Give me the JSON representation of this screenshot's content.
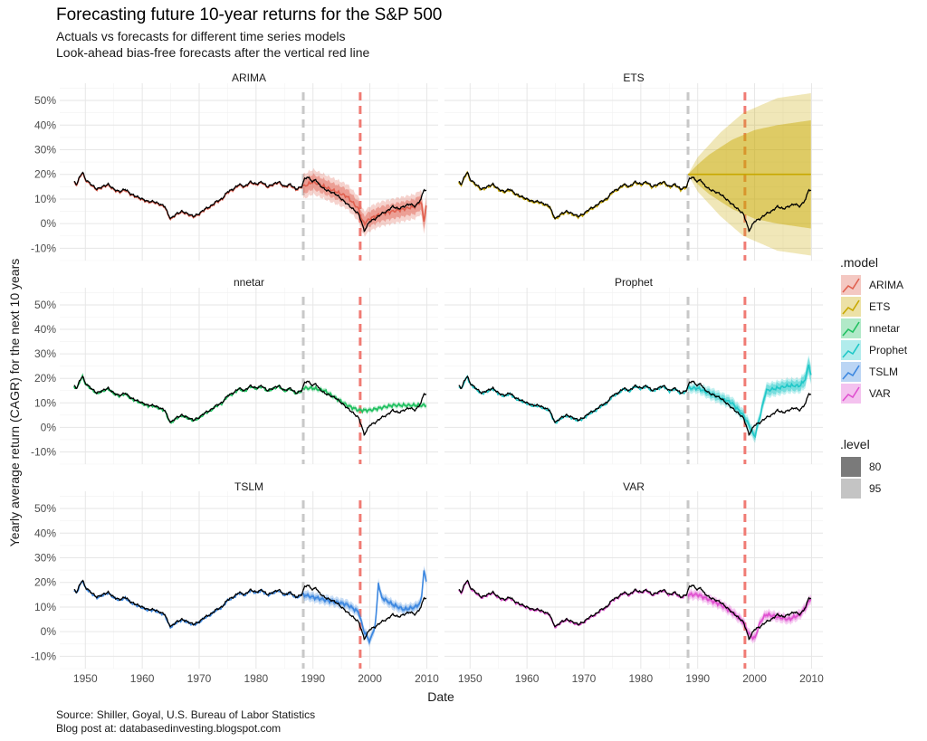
{
  "texts": {
    "title": "Forecasting future 10-year returns for the S&P 500",
    "subtitle_1": "Actuals vs forecasts for different time series models",
    "subtitle_2": "Look-ahead bias-free forecasts after the vertical red line",
    "caption_1": "Source: Shiller, Goyal, U.S. Bureau of Labor Statistics",
    "caption_2": "Blog post at: databasedinvesting.blogspot.com",
    "xlabel": "Date",
    "ylabel": "Yearly average return (CAGR) for the next 10 years"
  },
  "chart_data": {
    "type": "line",
    "title": "Forecasting future 10-year returns for the S&P 500",
    "xlabel": "Date",
    "ylabel": "Yearly average return (CAGR) for the next 10 years",
    "xlim": [
      1945.5,
      2012
    ],
    "ylim": [
      -15,
      57
    ],
    "x_ticks": [
      1950,
      1960,
      1970,
      1980,
      1990,
      2000,
      2010
    ],
    "x_tick_labels": [
      "1950",
      "1960",
      "1970",
      "1980",
      "1990",
      "2000",
      "2010"
    ],
    "y_ticks": [
      -10,
      0,
      10,
      20,
      30,
      40,
      50
    ],
    "y_tick_labels": [
      "-10%",
      "0%",
      "10%",
      "20%",
      "30%",
      "40%",
      "50%"
    ],
    "grid": true,
    "legend_position": "right",
    "training_end_line": {
      "x": 1988.3,
      "color": "#c8c8c8"
    },
    "forecast_start_line": {
      "x": 1998.3,
      "color": "#f07b74"
    },
    "legend": {
      "model_title": ".model",
      "level_title": ".level",
      "levels": [
        "80",
        "95"
      ]
    },
    "actual": {
      "name": "Actual",
      "color": "#000000",
      "x": [
        1948,
        1948.5,
        1949,
        1949.5,
        1950,
        1950.5,
        1951,
        1951.5,
        1952,
        1953,
        1954,
        1955,
        1956,
        1957,
        1958,
        1959,
        1960,
        1961,
        1962,
        1963,
        1964,
        1964.5,
        1965,
        1965.5,
        1966,
        1967,
        1968,
        1969,
        1970,
        1971,
        1972,
        1973,
        1974,
        1975,
        1976,
        1977,
        1978,
        1979,
        1980,
        1981,
        1982,
        1983,
        1984,
        1985,
        1986,
        1987,
        1988,
        1988.5,
        1989,
        1989.5,
        1990,
        1990.5,
        1991,
        1992,
        1993,
        1994,
        1995,
        1996,
        1997,
        1998,
        1998.5,
        1999,
        1999.5,
        2000,
        2001,
        2002,
        2003,
        2004,
        2005,
        2006,
        2007,
        2008,
        2009,
        2009.5,
        2010
      ],
      "y": [
        17,
        16,
        19,
        21,
        18,
        17,
        16,
        15,
        14,
        15,
        16,
        14,
        13,
        14,
        12,
        11,
        10,
        9,
        9,
        8,
        7,
        4,
        2,
        3,
        4,
        5,
        4,
        3,
        4,
        6,
        7,
        9,
        10,
        13,
        14,
        16,
        15,
        17,
        16,
        17,
        15,
        16,
        17,
        15,
        16,
        14,
        15,
        18,
        19,
        18,
        17,
        18,
        16,
        14,
        13,
        12,
        10,
        8,
        6,
        4,
        1,
        -3,
        -1,
        1,
        2,
        4,
        5,
        7,
        6,
        7,
        8,
        7,
        10,
        14,
        13
      ]
    },
    "series": [
      {
        "name": "ARIMA",
        "color": "#e0604f",
        "forecast": {
          "x": [
            1988.3,
            1990,
            1992,
            1994,
            1996,
            1998,
            1998.5,
            1999,
            2000,
            2002,
            2004,
            2006,
            2008,
            2009,
            2009.5,
            2010
          ],
          "y": [
            15,
            17,
            15,
            13,
            11,
            6,
            2,
            0,
            2,
            4,
            5,
            6,
            7,
            9,
            1,
            8
          ]
        },
        "band80": [
          3,
          3,
          3,
          3,
          3,
          3,
          3,
          3,
          3,
          3,
          3,
          3,
          3,
          3,
          3,
          3
        ],
        "band95": [
          5,
          5,
          5,
          5,
          5,
          5,
          5,
          5,
          5,
          5,
          5,
          5,
          5,
          5,
          5,
          5
        ]
      },
      {
        "name": "ETS",
        "color": "#c8a800",
        "forecast": {
          "x": [
            1988.3,
            2010
          ],
          "y": [
            20,
            20
          ]
        },
        "band80": [
          0,
          4,
          8,
          11,
          14,
          16,
          18,
          19,
          20,
          21,
          22
        ],
        "band95": [
          0,
          7,
          12,
          17,
          21,
          25,
          27,
          29,
          31,
          32,
          33
        ],
        "band_x": [
          1988.3,
          1990,
          1992,
          1994,
          1996,
          1998,
          2000,
          2002,
          2004,
          2007,
          2010
        ]
      },
      {
        "name": "nnetar",
        "color": "#20c060",
        "forecast": {
          "x": [
            1988.3,
            1990,
            1992,
            1994,
            1996,
            1998,
            2000,
            2002,
            2004,
            2006,
            2008,
            2010
          ],
          "y": [
            16,
            16,
            15,
            12,
            9,
            7,
            7,
            8,
            9,
            9,
            9,
            9
          ]
        },
        "band80": [
          0.5,
          0.5,
          0.5,
          0.5,
          0.5,
          0.5,
          0.5,
          0.5,
          0.5,
          0.5,
          0.5,
          0.5
        ],
        "band95": [
          1,
          1,
          1,
          1,
          1,
          1,
          1,
          1,
          1,
          1,
          1,
          1
        ]
      },
      {
        "name": "Prophet",
        "color": "#20c8c8",
        "forecast": {
          "x": [
            1988.3,
            1990,
            1992,
            1994,
            1996,
            1998,
            1999,
            2000,
            2001,
            2002,
            2004,
            2006,
            2008,
            2009,
            2009.5,
            2010
          ],
          "y": [
            16,
            16,
            14,
            12,
            10,
            5,
            1,
            -4,
            5,
            15,
            16,
            17,
            17,
            20,
            26,
            20
          ]
        },
        "band80": [
          1,
          1,
          1.5,
          1.5,
          1.5,
          1.5,
          1.5,
          1.5,
          1.5,
          2,
          2,
          2,
          2,
          2.5,
          3,
          3
        ],
        "band95": [
          2,
          2,
          2.5,
          2.5,
          2.5,
          2.5,
          2.5,
          2.5,
          2.5,
          3,
          3,
          3,
          3,
          3.5,
          4,
          4
        ]
      },
      {
        "name": "TSLM",
        "color": "#3c87e0",
        "forecast": {
          "x": [
            1988.3,
            1990,
            1992,
            1994,
            1996,
            1998,
            1999,
            2000,
            2001,
            2001.5,
            2002,
            2004,
            2006,
            2008,
            2009,
            2009.5,
            2010
          ],
          "y": [
            15,
            14,
            13,
            12,
            11,
            8,
            0,
            -4,
            3,
            20,
            14,
            11,
            9,
            10,
            12,
            25,
            19
          ]
        },
        "band80": [
          1,
          1,
          1,
          1,
          1,
          1,
          1,
          1,
          1,
          1,
          1,
          1,
          1,
          1,
          1,
          1,
          1
        ],
        "band95": [
          2,
          2,
          2,
          2,
          2,
          2,
          2,
          2,
          2,
          2,
          2,
          2,
          2,
          2,
          2,
          2,
          2
        ]
      },
      {
        "name": "VAR",
        "color": "#e050d0",
        "forecast": {
          "x": [
            1988.3,
            1990,
            1992,
            1994,
            1996,
            1998,
            1999,
            2000,
            2001,
            2002,
            2004,
            2006,
            2008,
            2009,
            2010
          ],
          "y": [
            15,
            15,
            13,
            11,
            8,
            4,
            -1,
            -3,
            4,
            7,
            6,
            5,
            7,
            10,
            14
          ]
        },
        "band80": [
          1,
          1,
          1,
          1,
          1,
          1,
          1,
          1,
          1,
          1,
          1,
          1,
          1,
          1,
          1
        ],
        "band95": [
          2,
          2,
          2,
          2,
          2,
          2,
          2,
          2,
          2,
          2,
          2,
          2,
          2,
          2,
          2
        ]
      }
    ]
  }
}
